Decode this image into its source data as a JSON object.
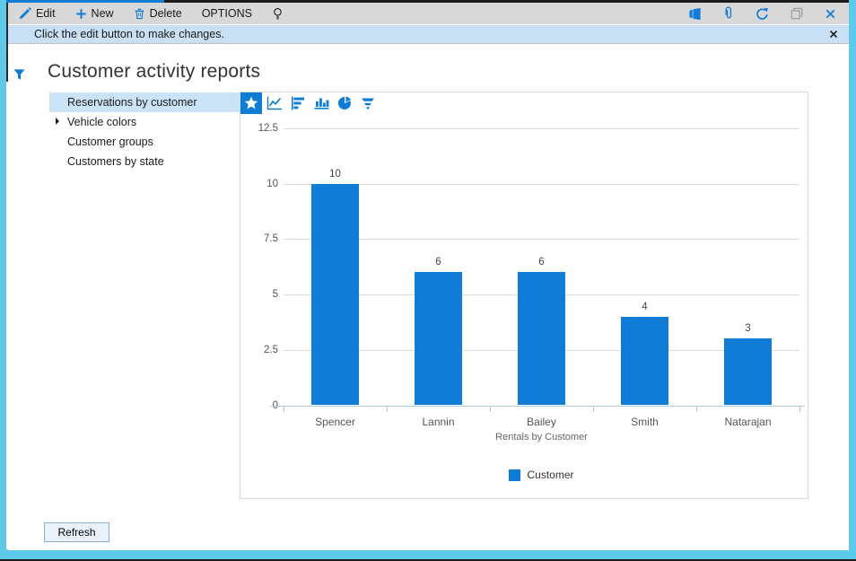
{
  "toolbar": {
    "items": [
      {
        "label": "Edit",
        "icon": "pencil-icon"
      },
      {
        "label": "New",
        "icon": "plus-icon"
      },
      {
        "label": "Delete",
        "icon": "trash-icon"
      },
      {
        "label": "OPTIONS",
        "icon": null
      }
    ],
    "lightbulb": "lightbulb-icon",
    "right_icons": [
      "office-icon",
      "paperclip-icon",
      "refresh-icon",
      "restore-window-icon",
      "close-icon"
    ]
  },
  "notification": {
    "message": "Click the edit button to make changes.",
    "close_icon": "close-icon"
  },
  "page": {
    "title": "Customer activity reports",
    "filter_icon": "filter-funnel-icon"
  },
  "report_list": {
    "items": [
      {
        "label": "Reservations by customer",
        "selected": true,
        "expandable": false
      },
      {
        "label": "Vehicle colors",
        "selected": false,
        "expandable": true
      },
      {
        "label": "Customer groups",
        "selected": false,
        "expandable": false
      },
      {
        "label": "Customers by state",
        "selected": false,
        "expandable": false
      }
    ]
  },
  "chart_toolbar": {
    "icons": [
      "favorite-star-icon",
      "line-chart-icon",
      "bar-chart-horizontal-icon",
      "column-chart-icon",
      "pie-chart-icon",
      "funnel-chart-icon"
    ],
    "selected": "favorite-star-icon"
  },
  "chart_data": {
    "type": "bar",
    "categories": [
      "Spencer",
      "Lannin",
      "Bailey",
      "Smith",
      "Natarajan"
    ],
    "values": [
      10,
      6,
      6,
      4,
      3
    ],
    "series_name": "Customer",
    "xlabel": "Rentals by Customer",
    "ylim": [
      0,
      12.5
    ],
    "yticks": [
      0,
      2.5,
      5,
      7.5,
      10,
      12.5
    ],
    "ytick_labels": [
      "0",
      "2.5",
      "5",
      "7.5",
      "10",
      "12.5"
    ],
    "bar_color": "#0f7cd6",
    "grid": true,
    "value_labels": true,
    "legend_position": "bottom"
  },
  "footer": {
    "refresh_label": "Refresh"
  },
  "colors": {
    "accent_blue": "#0f7cd6",
    "frame_cyan": "#5ec9e8",
    "toolbar_bg": "#d8d8d8",
    "notification_bg": "#c9dff3",
    "selection_bg": "#cbe3f6",
    "gridline": "#dcdcdc",
    "axis_line": "#a9cbe4"
  }
}
